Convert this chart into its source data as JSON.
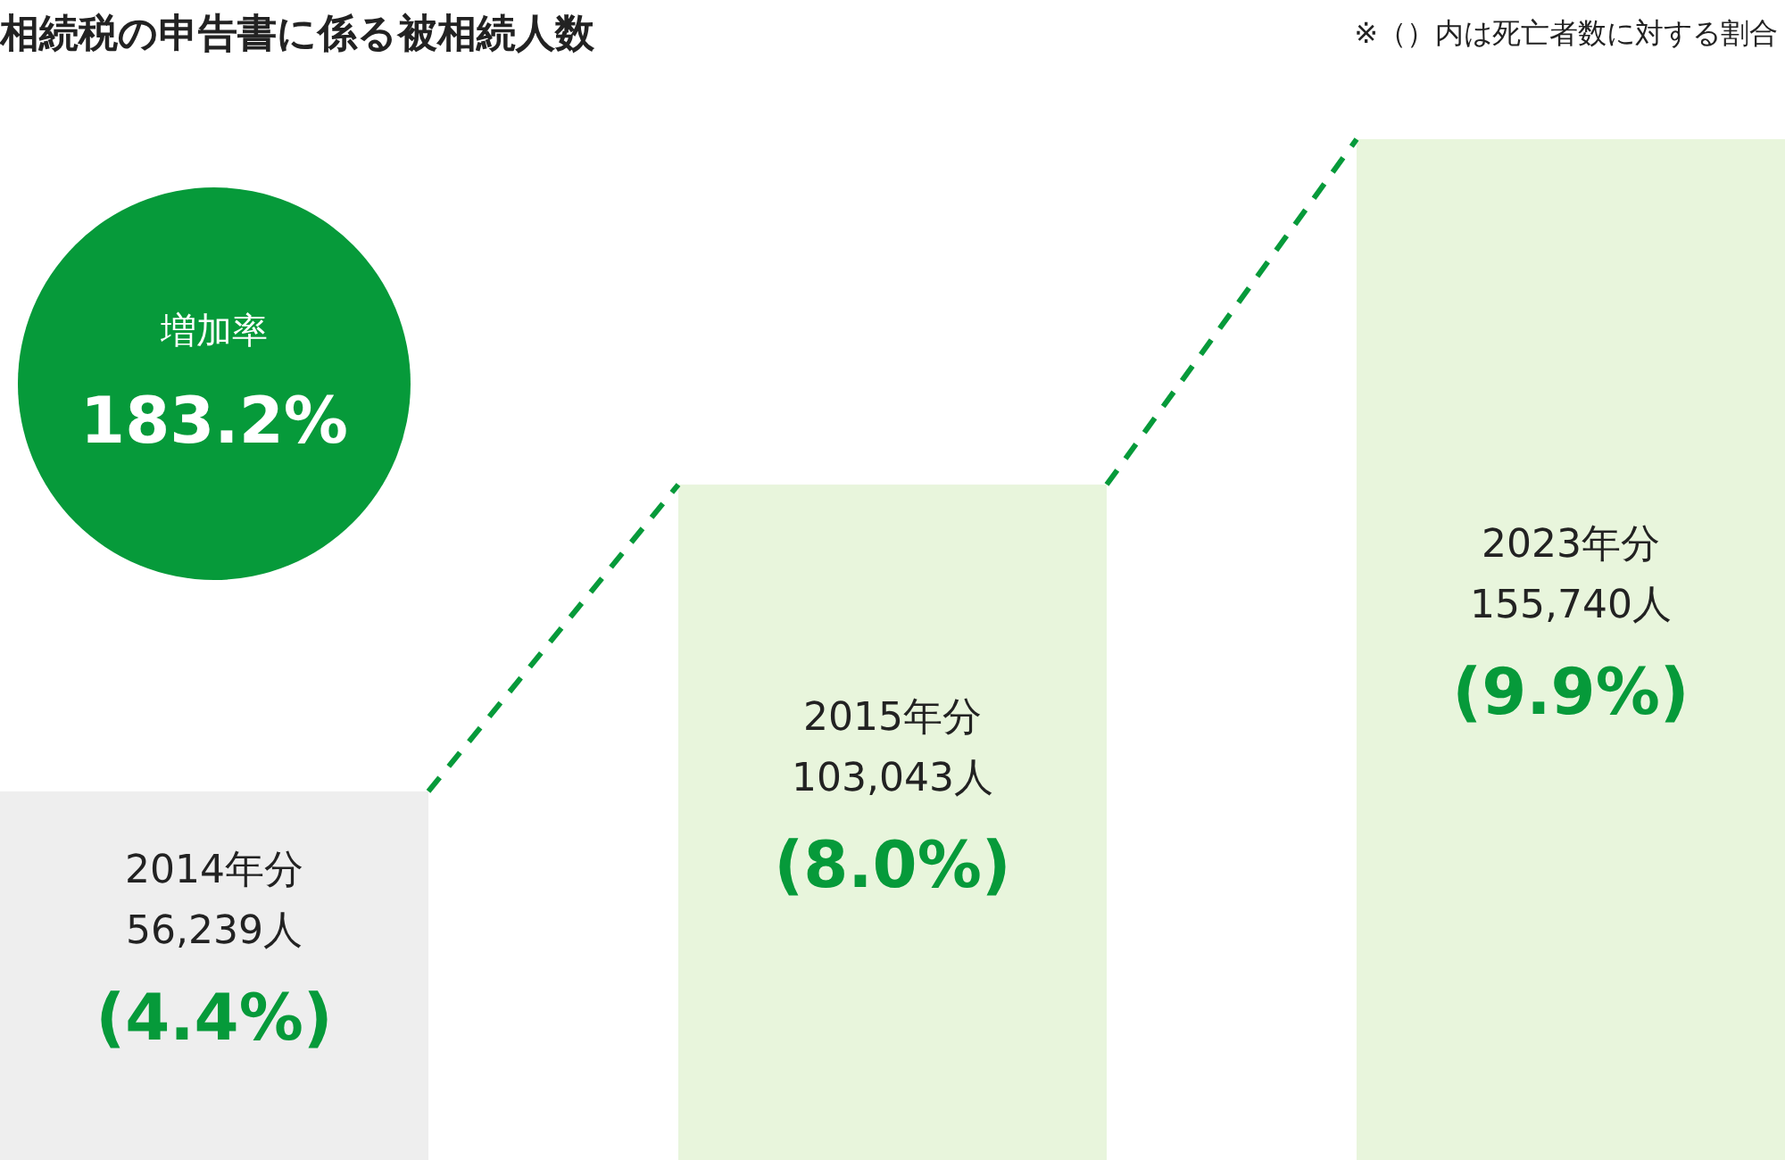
{
  "chart_data": {
    "type": "bar",
    "title": "相続税の申告書に係る被相続人数",
    "categories": [
      "2014年分",
      "2015年分",
      "2023年分"
    ],
    "values": [
      56239,
      103043,
      155740
    ],
    "colors": [
      "#eeeeee",
      "#e8f5dc",
      "#e8f5dc"
    ],
    "value_labels": [
      "56,239人",
      "103,043人",
      "155,740人"
    ],
    "annotations": [
      "(4.4%)",
      "(8.0%)",
      "(9.9%)",
      "増加率",
      "183.2%",
      "※（）内は死亡者数に対する割合"
    ]
  }
}
